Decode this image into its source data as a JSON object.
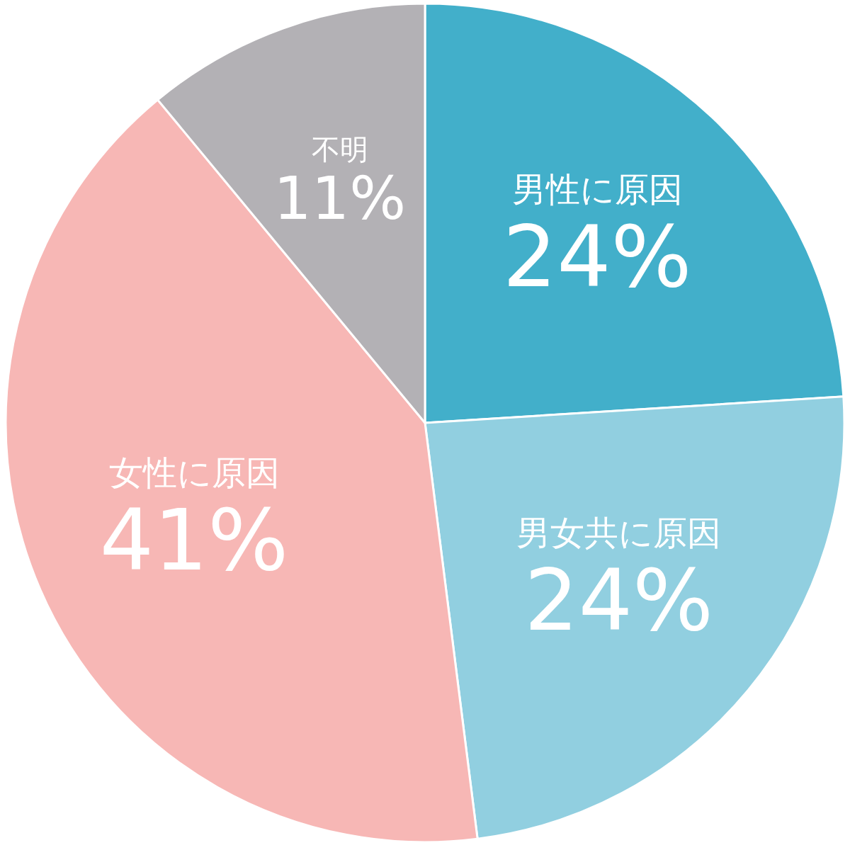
{
  "chart_data": {
    "type": "pie",
    "categories": [
      "男性に原因",
      "男女共に原因",
      "女性に原因",
      "不明"
    ],
    "values": [
      24,
      24,
      41,
      11
    ],
    "colors": [
      "#42afca",
      "#91cfe0",
      "#f7b7b5",
      "#b3b1b5"
    ],
    "value_labels": [
      "24%",
      "24%",
      "41%",
      "11%"
    ]
  }
}
